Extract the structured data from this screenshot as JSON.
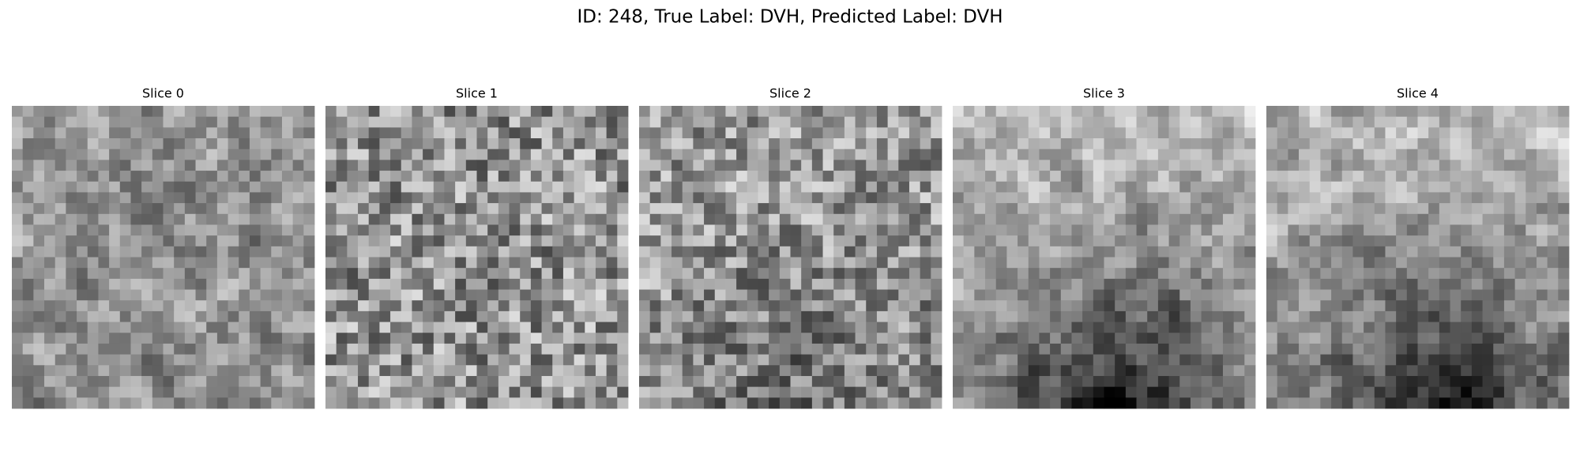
{
  "title": "ID: 248, True Label: DVH, Predicted Label: DVH",
  "panels": [
    {
      "title": "Slice 0"
    },
    {
      "title": "Slice 1"
    },
    {
      "title": "Slice 2"
    },
    {
      "title": "Slice 3"
    },
    {
      "title": "Slice 4"
    }
  ]
}
